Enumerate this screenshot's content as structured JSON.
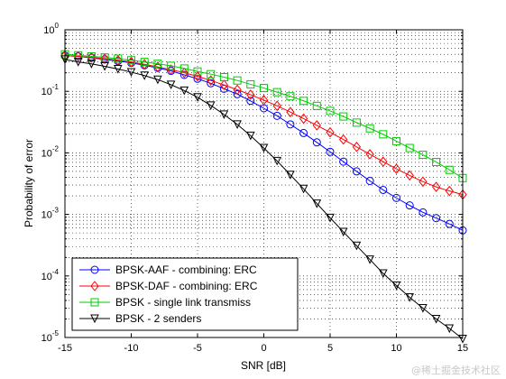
{
  "chart_data": {
    "type": "line",
    "title": "",
    "xlabel": "SNR [dB]",
    "ylabel": "Probability of error",
    "xlim": [
      -15,
      15
    ],
    "ylim": [
      1e-05,
      1
    ],
    "yscale": "log",
    "grid": true,
    "legend_position": "bottom-left",
    "x_ticks": [
      "-15",
      "-10",
      "-5",
      "0",
      "5",
      "10",
      "15"
    ],
    "y_ticks": [
      {
        "base": "10",
        "exp": "0"
      },
      {
        "base": "10",
        "exp": "-1"
      },
      {
        "base": "10",
        "exp": "-2"
      },
      {
        "base": "10",
        "exp": "-3"
      },
      {
        "base": "10",
        "exp": "-4"
      },
      {
        "base": "10",
        "exp": "-5"
      }
    ],
    "x": [
      -15,
      -14,
      -13,
      -12,
      -11,
      -10,
      -9,
      -8,
      -7,
      -6,
      -5,
      -4,
      -3,
      -2,
      -1,
      0,
      1,
      2,
      3,
      4,
      5,
      6,
      7,
      8,
      9,
      10,
      11,
      12,
      13,
      14,
      15
    ],
    "series": [
      {
        "name": "BPSK-AAF - combining: ERC",
        "color": "#0000ff",
        "marker": "circle",
        "values": [
          0.38,
          0.37,
          0.35,
          0.33,
          0.31,
          0.29,
          0.265,
          0.24,
          0.215,
          0.185,
          0.16,
          0.135,
          0.11,
          0.09,
          0.07,
          0.053,
          0.04,
          0.029,
          0.021,
          0.0148,
          0.0104,
          0.0072,
          0.005,
          0.0035,
          0.0025,
          0.00185,
          0.0014,
          0.00108,
          0.00087,
          0.0007,
          0.00055
        ]
      },
      {
        "name": "BPSK-DAF - combining: ERC",
        "color": "#ff0000",
        "marker": "diamond",
        "values": [
          0.38,
          0.37,
          0.355,
          0.34,
          0.32,
          0.3,
          0.275,
          0.25,
          0.225,
          0.2,
          0.175,
          0.15,
          0.127,
          0.106,
          0.088,
          0.072,
          0.058,
          0.046,
          0.036,
          0.028,
          0.0215,
          0.0165,
          0.0125,
          0.0095,
          0.0072,
          0.0055,
          0.0043,
          0.0034,
          0.0028,
          0.0024,
          0.0021
        ]
      },
      {
        "name": "BPSK - single link transmiss",
        "color": "#00cc00",
        "marker": "square",
        "values": [
          0.4,
          0.385,
          0.37,
          0.355,
          0.34,
          0.32,
          0.3,
          0.28,
          0.26,
          0.235,
          0.21,
          0.19,
          0.17,
          0.15,
          0.13,
          0.113,
          0.097,
          0.083,
          0.07,
          0.058,
          0.048,
          0.039,
          0.031,
          0.025,
          0.02,
          0.0155,
          0.012,
          0.0093,
          0.0071,
          0.0053,
          0.0039
        ]
      },
      {
        "name": "BPSK - 2 senders",
        "color": "#000000",
        "marker": "triangle-down",
        "values": [
          0.33,
          0.3,
          0.28,
          0.255,
          0.23,
          0.205,
          0.18,
          0.155,
          0.128,
          0.103,
          0.08,
          0.059,
          0.042,
          0.029,
          0.019,
          0.012,
          0.0074,
          0.0044,
          0.0026,
          0.0015,
          0.00088,
          0.00052,
          0.00031,
          0.000185,
          0.00011,
          7e-05,
          4.5e-05,
          3e-05,
          2e-05,
          1.4e-05,
          9.5e-06
        ]
      }
    ]
  },
  "watermark": "@稀土掘金技术社区"
}
